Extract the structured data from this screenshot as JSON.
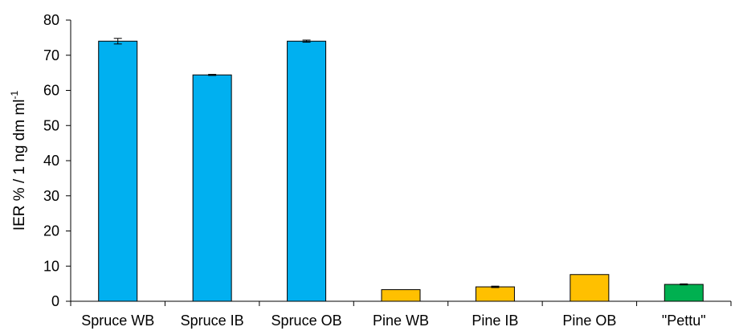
{
  "chart_data": {
    "type": "bar",
    "categories": [
      "Spruce WB",
      "Spruce IB",
      "Spruce OB",
      "Pine WB",
      "Pine IB",
      "Pine OB",
      "\"Pettu\""
    ],
    "values": [
      74.0,
      64.4,
      74.0,
      3.3,
      4.1,
      7.6,
      4.8
    ],
    "errors": [
      0.8,
      0.15,
      0.3,
      0.0,
      0.2,
      0.0,
      0.15
    ],
    "bar_colors": [
      "#00b0f0",
      "#00b0f0",
      "#00b0f0",
      "#ffc000",
      "#ffc000",
      "#ffc000",
      "#00b050"
    ],
    "bar_edge_color": "#000000",
    "ylabel_main": "IER % / 1 ng dm ml",
    "ylabel_sup": "-1",
    "xlabel": "",
    "ylim": [
      0,
      80
    ],
    "yticks": [
      0,
      10,
      20,
      30,
      40,
      50,
      60,
      70,
      80
    ],
    "grid": false,
    "legend": "none"
  }
}
